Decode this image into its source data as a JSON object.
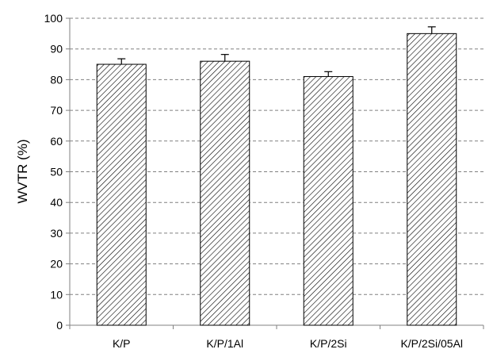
{
  "chart_data": {
    "type": "bar",
    "title": "",
    "xlabel": "",
    "ylabel": "WVTR (%)",
    "ylim": [
      0,
      100
    ],
    "yticks": [
      0,
      10,
      20,
      30,
      40,
      50,
      60,
      70,
      80,
      90,
      100
    ],
    "grid": true,
    "categories": [
      "K/P",
      "K/P/1Al",
      "K/P/2Si",
      "K/P/2Si/05Al"
    ],
    "values": [
      85,
      86,
      81,
      95
    ],
    "error_bars": [
      1.8,
      2.2,
      1.6,
      2.2
    ],
    "bar_fill": "diagonal-hatch",
    "colors": {
      "bar_stroke": "#000000",
      "hatch": "#000000",
      "grid": "#808080",
      "axis": "#808080"
    }
  }
}
